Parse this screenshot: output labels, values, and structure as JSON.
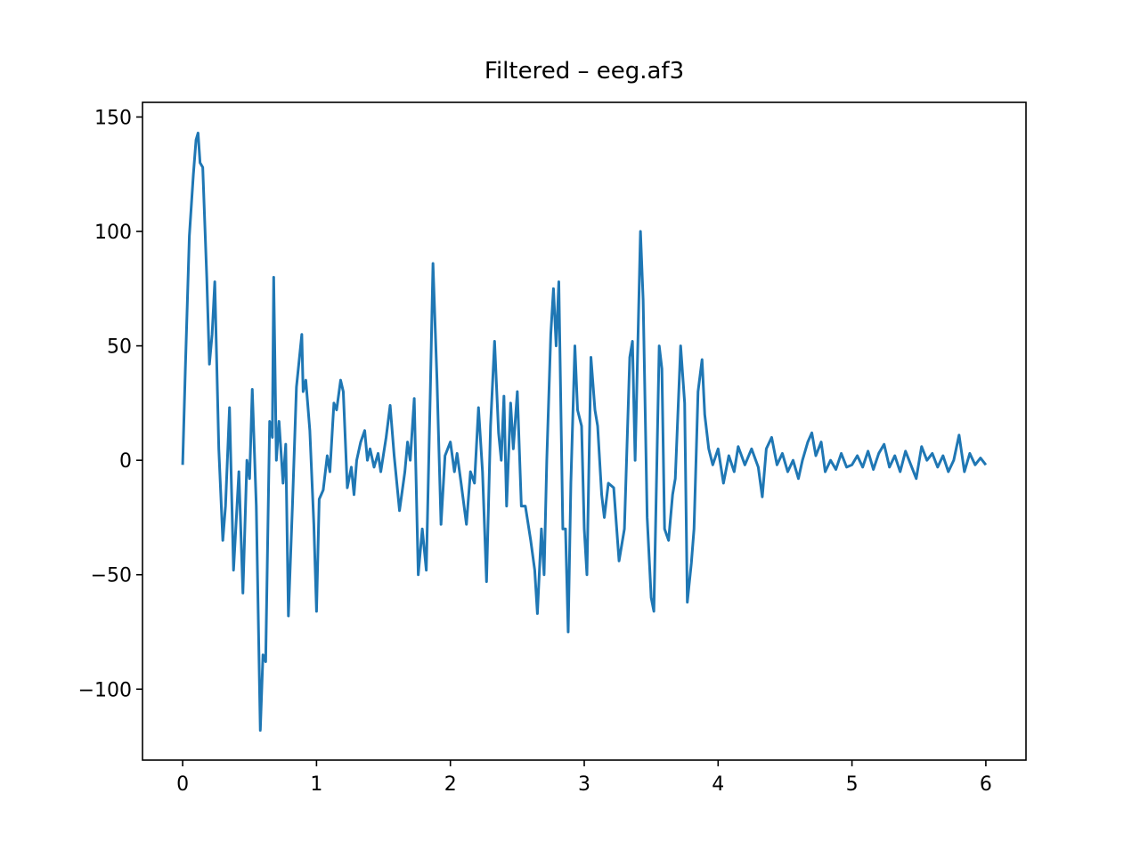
{
  "chart_data": {
    "type": "line",
    "title": "Filtered – eeg.af3",
    "x": [
      0,
      0.02,
      0.05,
      0.08,
      0.1,
      0.115,
      0.13,
      0.15,
      0.18,
      0.2,
      0.22,
      0.24,
      0.27,
      0.3,
      0.32,
      0.35,
      0.38,
      0.42,
      0.45,
      0.48,
      0.5,
      0.52,
      0.55,
      0.58,
      0.6,
      0.62,
      0.65,
      0.67,
      0.68,
      0.7,
      0.72,
      0.75,
      0.77,
      0.79,
      0.82,
      0.85,
      0.89,
      0.9,
      0.92,
      0.95,
      0.98,
      1.0,
      1.02,
      1.05,
      1.08,
      1.1,
      1.13,
      1.15,
      1.18,
      1.2,
      1.23,
      1.26,
      1.28,
      1.3,
      1.33,
      1.36,
      1.38,
      1.4,
      1.43,
      1.46,
      1.48,
      1.52,
      1.55,
      1.58,
      1.62,
      1.66,
      1.68,
      1.7,
      1.73,
      1.76,
      1.79,
      1.82,
      1.85,
      1.87,
      1.9,
      1.93,
      1.96,
      2.0,
      2.03,
      2.05,
      2.08,
      2.12,
      2.15,
      2.18,
      2.21,
      2.24,
      2.27,
      2.3,
      2.33,
      2.36,
      2.38,
      2.4,
      2.42,
      2.45,
      2.47,
      2.5,
      2.53,
      2.56,
      2.6,
      2.63,
      2.65,
      2.68,
      2.7,
      2.72,
      2.75,
      2.77,
      2.79,
      2.81,
      2.84,
      2.86,
      2.88,
      2.9,
      2.93,
      2.95,
      2.98,
      3.0,
      3.02,
      3.05,
      3.08,
      3.1,
      3.13,
      3.15,
      3.18,
      3.22,
      3.26,
      3.3,
      3.34,
      3.36,
      3.38,
      3.42,
      3.44,
      3.47,
      3.5,
      3.52,
      3.56,
      3.58,
      3.6,
      3.63,
      3.66,
      3.68,
      3.72,
      3.75,
      3.77,
      3.8,
      3.82,
      3.85,
      3.88,
      3.9,
      3.93,
      3.96,
      4.0,
      4.04,
      4.08,
      4.12,
      4.15,
      4.2,
      4.25,
      4.3,
      4.33,
      4.36,
      4.4,
      4.44,
      4.48,
      4.52,
      4.56,
      4.6,
      4.63,
      4.67,
      4.7,
      4.73,
      4.77,
      4.8,
      4.84,
      4.88,
      4.92,
      4.96,
      5.0,
      5.04,
      5.08,
      5.12,
      5.16,
      5.2,
      5.24,
      5.28,
      5.32,
      5.36,
      5.4,
      5.44,
      5.48,
      5.52,
      5.56,
      5.6,
      5.64,
      5.68,
      5.72,
      5.76,
      5.8,
      5.84,
      5.88,
      5.92,
      5.96,
      6.0
    ],
    "series": [
      {
        "color": "#1f77b4",
        "values": [
          -2,
          40,
          98,
          125,
          140,
          143,
          130,
          128,
          80,
          42,
          55,
          78,
          5,
          -35,
          -20,
          23,
          -48,
          -5,
          -58,
          0,
          -8,
          31,
          -20,
          -118,
          -85,
          -88,
          17,
          10,
          80,
          0,
          17,
          -10,
          7,
          -68,
          -20,
          32,
          55,
          30,
          35,
          13,
          -28,
          -66,
          -17,
          -13,
          2,
          -5,
          25,
          22,
          35,
          30,
          -12,
          -3,
          -15,
          0,
          8,
          13,
          0,
          5,
          -3,
          3,
          -5,
          10,
          24,
          2,
          -22,
          -5,
          8,
          0,
          27,
          -50,
          -30,
          -48,
          30,
          86,
          35,
          -28,
          2,
          8,
          -5,
          3,
          -10,
          -28,
          -5,
          -10,
          23,
          -5,
          -53,
          15,
          52,
          12,
          0,
          28,
          -20,
          25,
          5,
          30,
          -20,
          -20,
          -35,
          -48,
          -67,
          -30,
          -50,
          0,
          55,
          75,
          50,
          78,
          -30,
          -30,
          -75,
          -10,
          50,
          22,
          15,
          -30,
          -50,
          45,
          22,
          15,
          -15,
          -25,
          -10,
          -12,
          -44,
          -30,
          45,
          52,
          0,
          100,
          70,
          -25,
          -60,
          -66,
          50,
          40,
          -30,
          -35,
          -15,
          -8,
          50,
          25,
          -62,
          -45,
          -30,
          30,
          44,
          20,
          5,
          -2,
          5,
          -10,
          2,
          -5,
          6,
          -2,
          5,
          -3,
          -16,
          5,
          10,
          -2,
          3,
          -5,
          0,
          -8,
          0,
          8,
          12,
          2,
          8,
          -5,
          0,
          -4,
          3,
          -3,
          -2,
          2,
          -3,
          4,
          -4,
          3,
          7,
          -3,
          2,
          -5,
          4,
          -2,
          -8,
          6,
          0,
          3,
          -3,
          2,
          -5,
          0,
          11,
          -5,
          3,
          -2,
          1,
          -2
        ]
      }
    ],
    "xlim": [
      -0.3,
      6.3
    ],
    "ylim": [
      -131,
      156.4
    ],
    "xticks": [
      0,
      1,
      2,
      3,
      4,
      5,
      6
    ],
    "yticks": [
      {
        "value": -100,
        "label": "−100"
      },
      {
        "value": -50,
        "label": "−50"
      },
      0,
      50,
      100,
      150
    ]
  }
}
